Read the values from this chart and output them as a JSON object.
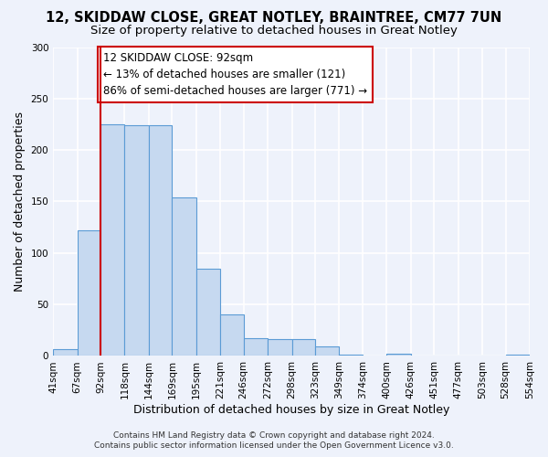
{
  "title1": "12, SKIDDAW CLOSE, GREAT NOTLEY, BRAINTREE, CM77 7UN",
  "title2": "Size of property relative to detached houses in Great Notley",
  "xlabel": "Distribution of detached houses by size in Great Notley",
  "ylabel": "Number of detached properties",
  "bin_edges": [
    41,
    67,
    92,
    118,
    144,
    169,
    195,
    221,
    246,
    272,
    298,
    323,
    349,
    374,
    400,
    426,
    451,
    477,
    503,
    528,
    554
  ],
  "bar_heights": [
    7,
    122,
    225,
    224,
    224,
    154,
    85,
    40,
    17,
    16,
    16,
    9,
    1,
    0,
    2,
    0,
    0,
    0,
    0,
    1
  ],
  "bar_color": "#c6d9f0",
  "bar_edge_color": "#5b9bd5",
  "red_line_x": 92,
  "annotation_text": "12 SKIDDAW CLOSE: 92sqm\n← 13% of detached houses are smaller (121)\n86% of semi-detached houses are larger (771) →",
  "annotation_box_color": "#ffffff",
  "annotation_box_edge_color": "#cc0000",
  "footer1": "Contains HM Land Registry data © Crown copyright and database right 2024.",
  "footer2": "Contains public sector information licensed under the Open Government Licence v3.0.",
  "ylim": [
    0,
    300
  ],
  "yticks": [
    0,
    50,
    100,
    150,
    200,
    250,
    300
  ],
  "background_color": "#eef2fb",
  "grid_color": "#ffffff",
  "title_fontsize": 10.5,
  "subtitle_fontsize": 9.5,
  "axis_label_fontsize": 9,
  "tick_fontsize": 7.5,
  "annotation_fontsize": 8.5,
  "footer_fontsize": 6.5
}
